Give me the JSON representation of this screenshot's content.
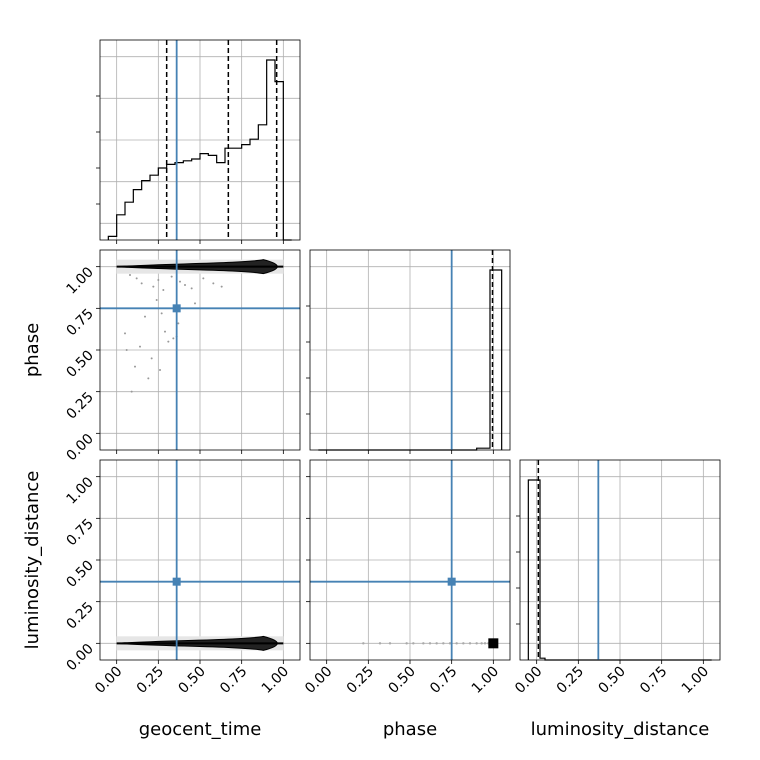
{
  "chart_data": {
    "type": "corner",
    "parameters": [
      "geocent_time",
      "phase",
      "luminosity_distance"
    ],
    "truths": {
      "geocent_time": 0.36,
      "phase": 0.75,
      "luminosity_distance": 0.37
    },
    "truth_color": "#4682b4",
    "hist_color": "#000000",
    "quantiles": {
      "geocent_time": [
        0.3,
        0.67,
        0.96
      ],
      "phase": [
        0.995
      ],
      "luminosity_distance": [
        0.01
      ]
    },
    "ticks": [
      "0.00",
      "0.25",
      "0.50",
      "0.75",
      "1.00"
    ],
    "tick_values": [
      0,
      0.25,
      0.5,
      0.75,
      1.0
    ],
    "xlim": [
      -0.1,
      1.1
    ],
    "ylim": [
      -0.1,
      1.1
    ],
    "grid": true,
    "histograms": {
      "geocent_time": {
        "bin_edges": [
          -0.05,
          0.0,
          0.05,
          0.1,
          0.15,
          0.2,
          0.25,
          0.3,
          0.35,
          0.4,
          0.45,
          0.5,
          0.55,
          0.6,
          0.65,
          0.7,
          0.75,
          0.8,
          0.85,
          0.9,
          0.95,
          1.0,
          1.05
        ],
        "counts": [
          0.02,
          0.14,
          0.21,
          0.28,
          0.33,
          0.36,
          0.4,
          0.42,
          0.43,
          0.44,
          0.45,
          0.48,
          0.47,
          0.43,
          0.51,
          0.51,
          0.53,
          0.56,
          0.64,
          1.0,
          0.88,
          0.0
        ]
      },
      "phase": {
        "bin_edges": [
          -0.05,
          0.0,
          0.05,
          0.1,
          0.15,
          0.2,
          0.25,
          0.3,
          0.35,
          0.4,
          0.45,
          0.5,
          0.55,
          0.6,
          0.65,
          0.7,
          0.75,
          0.8,
          0.85,
          0.9,
          0.95,
          0.98,
          1.05
        ],
        "counts": [
          0,
          0,
          0,
          0,
          0,
          0,
          0,
          0,
          0,
          0,
          0,
          0,
          0,
          0,
          0,
          0,
          0,
          0,
          0,
          0.01,
          0.01,
          1.0
        ]
      },
      "luminosity_distance": {
        "bin_edges": [
          -0.05,
          0.02,
          0.05,
          0.1,
          0.15,
          0.2,
          0.25,
          0.3,
          0.35,
          0.4,
          0.45,
          0.5,
          0.55,
          0.6,
          0.65,
          0.7,
          0.75,
          0.8,
          0.85,
          0.9,
          0.95,
          1.0,
          1.05
        ],
        "counts": [
          1.0,
          0.01,
          0,
          0,
          0,
          0,
          0,
          0,
          0,
          0,
          0,
          0,
          0,
          0,
          0,
          0,
          0,
          0,
          0,
          0,
          0,
          0
        ]
      }
    },
    "scatter": {
      "geocent_time_vs_phase": {
        "x": [
          0.08,
          0.12,
          0.15,
          0.22,
          0.25,
          0.28,
          0.33,
          0.38,
          0.41,
          0.45,
          0.52,
          0.58,
          0.63,
          0.17,
          0.27,
          0.37,
          0.47,
          0.05,
          0.31,
          0.36,
          0.11,
          0.21,
          0.14,
          0.26,
          0.06,
          0.19,
          0.34,
          0.09,
          0.29,
          0.24
        ],
        "y": [
          0.95,
          0.93,
          0.9,
          0.88,
          0.92,
          0.86,
          0.94,
          0.91,
          0.89,
          0.87,
          0.93,
          0.9,
          0.88,
          0.7,
          0.72,
          0.66,
          0.78,
          0.6,
          0.55,
          0.58,
          0.4,
          0.45,
          0.52,
          0.38,
          0.5,
          0.33,
          0.57,
          0.25,
          0.61,
          0.8
        ]
      },
      "phase_vs_luminosity_distance": {
        "x": [
          0.22,
          0.32,
          0.38,
          0.48,
          0.52,
          0.58,
          0.62,
          0.66,
          0.7,
          0.74,
          0.78,
          0.82,
          0.86,
          0.9,
          0.93,
          0.95,
          0.97
        ],
        "y": [
          0.0,
          0.0,
          0.0,
          0.0,
          0.0,
          0.0,
          0.0,
          0.0,
          0.0,
          0.0,
          0.0,
          0.0,
          0.0,
          0.0,
          0.0,
          0.0,
          0.0
        ]
      }
    },
    "density_bands": {
      "geocent_time_vs_phase": {
        "x_range": [
          0.0,
          1.0
        ],
        "y": 1.0
      },
      "geocent_time_vs_luminosity_distance": {
        "x_range": [
          0.0,
          1.0
        ],
        "y": 0.0
      }
    }
  }
}
